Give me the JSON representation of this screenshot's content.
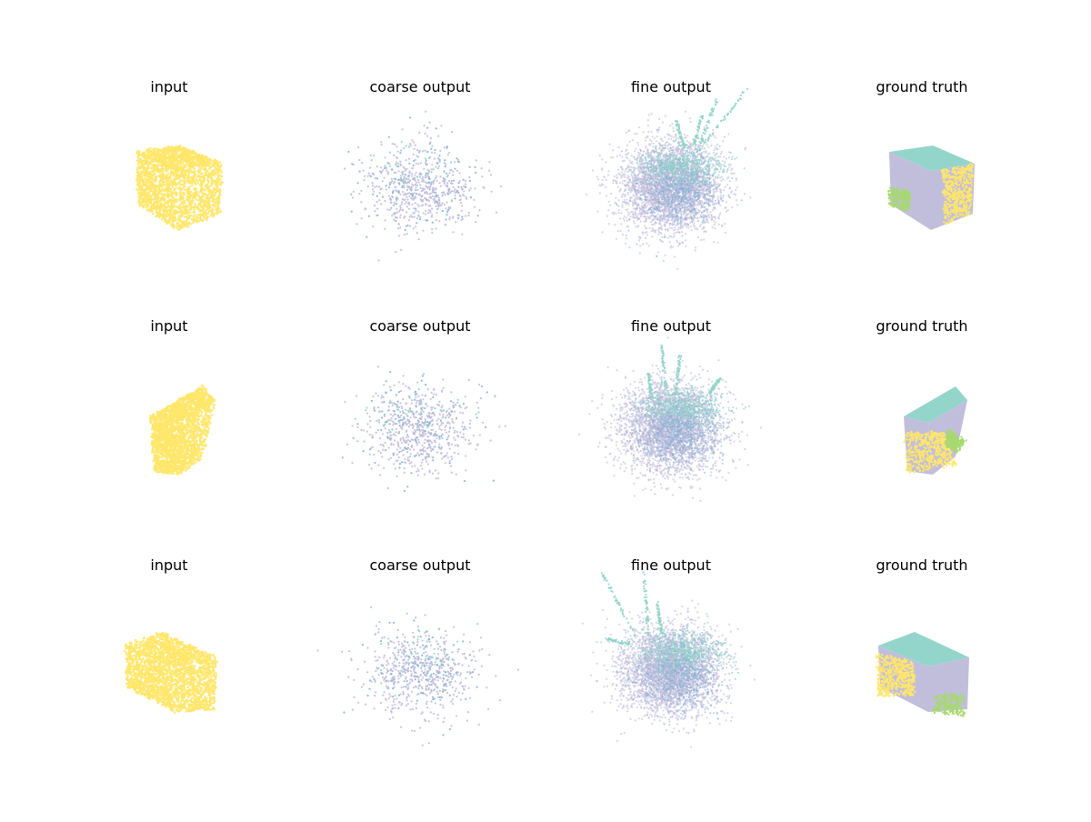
{
  "figure": {
    "rows": [
      {
        "panels": [
          {
            "title": "input",
            "kind": "input",
            "shape": "cube"
          },
          {
            "title": "coarse output",
            "kind": "coarse",
            "shape": "cloud"
          },
          {
            "title": "fine output",
            "kind": "fine",
            "shape": "cloud-spikes-right"
          },
          {
            "title": "ground truth",
            "kind": "truth",
            "shape": "cube"
          }
        ]
      },
      {
        "panels": [
          {
            "title": "input",
            "kind": "input",
            "shape": "tall-box"
          },
          {
            "title": "coarse output",
            "kind": "coarse",
            "shape": "cloud"
          },
          {
            "title": "fine output",
            "kind": "fine",
            "shape": "cloud-spikes-top"
          },
          {
            "title": "ground truth",
            "kind": "truth",
            "shape": "tall-box"
          }
        ]
      },
      {
        "panels": [
          {
            "title": "input",
            "kind": "input",
            "shape": "wide-box"
          },
          {
            "title": "coarse output",
            "kind": "coarse",
            "shape": "cloud"
          },
          {
            "title": "fine output",
            "kind": "fine",
            "shape": "cloud-spikes-left"
          },
          {
            "title": "ground truth",
            "kind": "truth",
            "shape": "wide-box"
          }
        ]
      }
    ],
    "colors": {
      "yellow": "#ffe76a",
      "teal": "#8dd3c7",
      "lavender": "#bebada",
      "blue": "#80b1d3",
      "green": "#b3de69",
      "lightgreen": "#a6d96a"
    }
  }
}
